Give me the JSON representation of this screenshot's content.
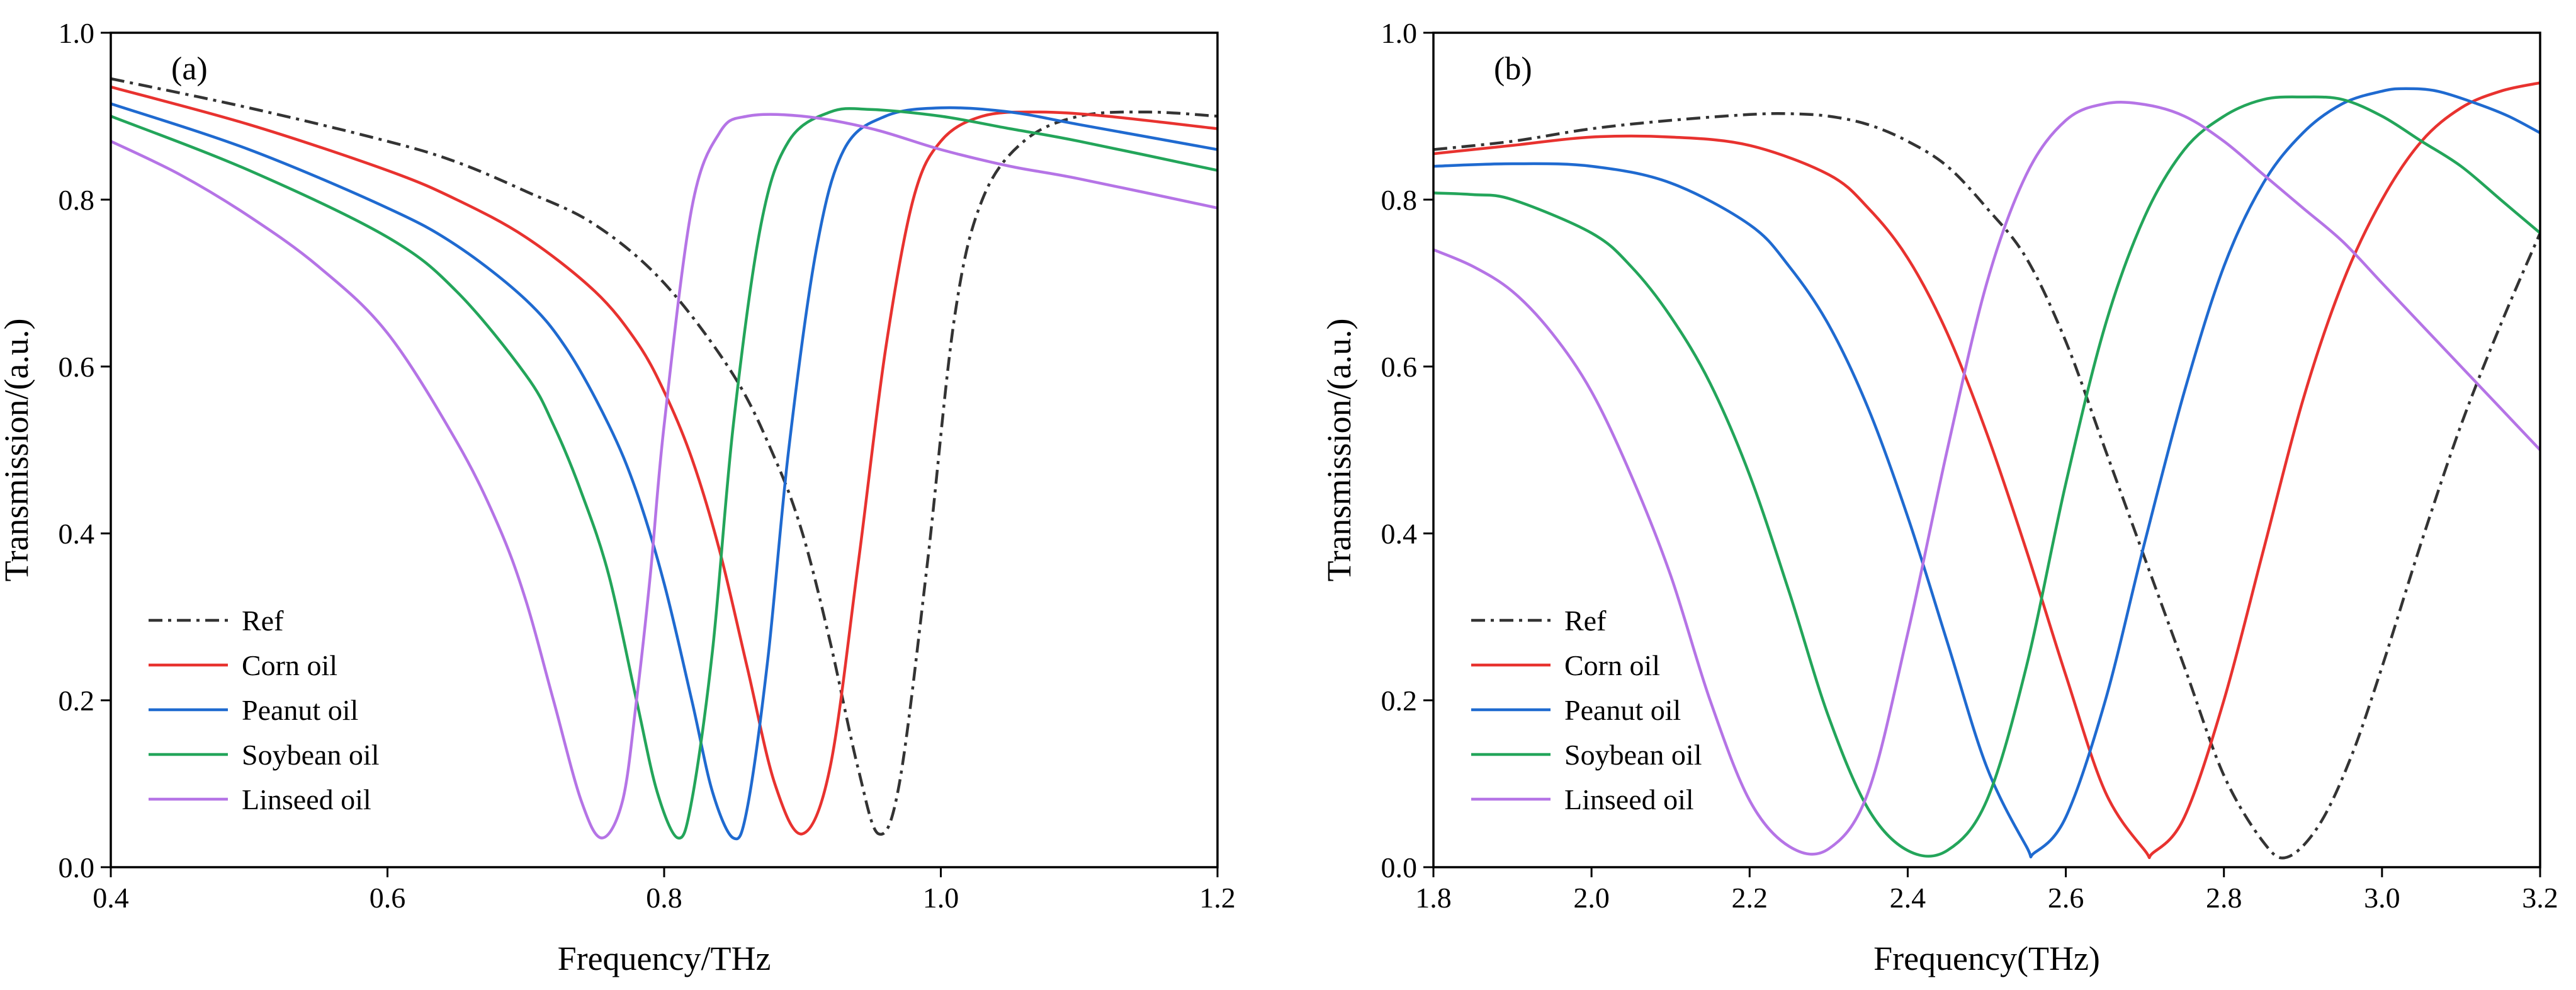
{
  "colors": {
    "Ref": "#333333",
    "Corn oil": "#e8322f",
    "Peanut oil": "#1f6ad0",
    "Soybean oil": "#23a55a",
    "Linseed oil": "#b574e6"
  },
  "chart_data": [
    {
      "type": "line",
      "panel_label": "(a)",
      "xlabel": "Frequency/THz",
      "ylabel": "Transmission/(a.u.)",
      "xlim": [
        0.4,
        1.2
      ],
      "ylim": [
        0.0,
        1.0
      ],
      "xticks": [
        "0.4",
        "0.6",
        "0.8",
        "1.0",
        "1.2"
      ],
      "yticks": [
        "0.0",
        "0.2",
        "0.4",
        "0.6",
        "0.8",
        "1.0"
      ],
      "legend_position": "bottom-left",
      "series": [
        {
          "name": "Ref",
          "style": "dashdot",
          "x": [
            0.4,
            0.5,
            0.6,
            0.65,
            0.7,
            0.75,
            0.8,
            0.85,
            0.88,
            0.9,
            0.92,
            0.94,
            0.955,
            0.97,
            0.99,
            1.01,
            1.03,
            1.06,
            1.1,
            1.15,
            1.2
          ],
          "y": [
            0.945,
            0.91,
            0.87,
            0.845,
            0.81,
            0.77,
            0.7,
            0.59,
            0.49,
            0.4,
            0.27,
            0.12,
            0.04,
            0.1,
            0.36,
            0.66,
            0.8,
            0.87,
            0.9,
            0.905,
            0.9
          ]
        },
        {
          "name": "Corn oil",
          "style": "solid",
          "x": [
            0.4,
            0.5,
            0.6,
            0.65,
            0.7,
            0.75,
            0.78,
            0.8,
            0.82,
            0.84,
            0.86,
            0.88,
            0.9,
            0.92,
            0.94,
            0.96,
            0.98,
            1.0,
            1.03,
            1.07,
            1.12,
            1.2
          ],
          "y": [
            0.935,
            0.89,
            0.835,
            0.8,
            0.755,
            0.69,
            0.63,
            0.57,
            0.49,
            0.38,
            0.24,
            0.1,
            0.04,
            0.12,
            0.36,
            0.62,
            0.8,
            0.87,
            0.9,
            0.905,
            0.9,
            0.885
          ]
        },
        {
          "name": "Peanut oil",
          "style": "solid",
          "x": [
            0.4,
            0.5,
            0.6,
            0.65,
            0.7,
            0.73,
            0.76,
            0.78,
            0.8,
            0.82,
            0.835,
            0.85,
            0.86,
            0.875,
            0.89,
            0.91,
            0.93,
            0.96,
            1.0,
            1.05,
            1.1,
            1.2
          ],
          "y": [
            0.915,
            0.86,
            0.79,
            0.745,
            0.68,
            0.62,
            0.53,
            0.45,
            0.34,
            0.2,
            0.09,
            0.035,
            0.07,
            0.25,
            0.5,
            0.74,
            0.86,
            0.9,
            0.91,
            0.905,
            0.89,
            0.86
          ]
        },
        {
          "name": "Soybean oil",
          "style": "solid",
          "x": [
            0.4,
            0.5,
            0.6,
            0.65,
            0.7,
            0.72,
            0.74,
            0.76,
            0.78,
            0.795,
            0.81,
            0.82,
            0.835,
            0.85,
            0.87,
            0.89,
            0.92,
            0.95,
            1.0,
            1.05,
            1.1,
            1.2
          ],
          "y": [
            0.9,
            0.835,
            0.755,
            0.69,
            0.59,
            0.53,
            0.45,
            0.35,
            0.2,
            0.09,
            0.035,
            0.08,
            0.26,
            0.53,
            0.77,
            0.87,
            0.905,
            0.908,
            0.9,
            0.885,
            0.87,
            0.835
          ]
        },
        {
          "name": "Linseed oil",
          "style": "solid",
          "x": [
            0.4,
            0.45,
            0.5,
            0.55,
            0.6,
            0.65,
            0.68,
            0.7,
            0.72,
            0.74,
            0.755,
            0.77,
            0.78,
            0.79,
            0.8,
            0.82,
            0.84,
            0.86,
            0.9,
            0.95,
            1.0,
            1.05,
            1.1,
            1.2
          ],
          "y": [
            0.87,
            0.83,
            0.78,
            0.72,
            0.64,
            0.51,
            0.41,
            0.32,
            0.2,
            0.08,
            0.035,
            0.08,
            0.2,
            0.35,
            0.53,
            0.79,
            0.88,
            0.9,
            0.9,
            0.885,
            0.86,
            0.84,
            0.825,
            0.79
          ]
        }
      ]
    },
    {
      "type": "line",
      "panel_label": "(b)",
      "xlabel": "Frequency(THz)",
      "ylabel": "Transmission/(a.u.)",
      "xlim": [
        1.8,
        3.2
      ],
      "ylim": [
        0.0,
        1.0
      ],
      "xticks": [
        "1.8",
        "2.0",
        "2.2",
        "2.4",
        "2.6",
        "2.8",
        "3.0",
        "3.2"
      ],
      "yticks": [
        "0.0",
        "0.2",
        "0.4",
        "0.6",
        "0.8",
        "1.0"
      ],
      "legend_position": "bottom-left",
      "series": [
        {
          "name": "Ref",
          "style": "dashdot",
          "x": [
            1.8,
            1.9,
            2.0,
            2.1,
            2.2,
            2.25,
            2.3,
            2.35,
            2.4,
            2.45,
            2.5,
            2.55,
            2.6,
            2.65,
            2.7,
            2.75,
            2.8,
            2.85,
            2.88,
            2.92,
            2.96,
            3.0,
            3.05,
            3.1,
            3.15,
            3.2
          ],
          "y": [
            0.86,
            0.87,
            0.885,
            0.895,
            0.902,
            0.903,
            0.9,
            0.89,
            0.87,
            0.84,
            0.79,
            0.73,
            0.63,
            0.5,
            0.37,
            0.24,
            0.11,
            0.03,
            0.012,
            0.05,
            0.13,
            0.24,
            0.39,
            0.53,
            0.65,
            0.76
          ]
        },
        {
          "name": "Corn oil",
          "style": "solid",
          "x": [
            1.8,
            1.9,
            2.0,
            2.1,
            2.2,
            2.3,
            2.35,
            2.4,
            2.45,
            2.5,
            2.55,
            2.6,
            2.65,
            2.7,
            2.71,
            2.75,
            2.8,
            2.85,
            2.9,
            2.95,
            3.0,
            3.05,
            3.1,
            3.15,
            3.2
          ],
          "y": [
            0.855,
            0.865,
            0.875,
            0.875,
            0.865,
            0.83,
            0.79,
            0.73,
            0.64,
            0.52,
            0.38,
            0.23,
            0.09,
            0.02,
            0.017,
            0.06,
            0.2,
            0.38,
            0.56,
            0.7,
            0.8,
            0.87,
            0.91,
            0.93,
            0.94
          ]
        },
        {
          "name": "Peanut oil",
          "style": "solid",
          "x": [
            1.8,
            1.9,
            2.0,
            2.1,
            2.2,
            2.25,
            2.3,
            2.35,
            2.4,
            2.45,
            2.5,
            2.55,
            2.56,
            2.6,
            2.65,
            2.7,
            2.75,
            2.8,
            2.85,
            2.9,
            2.95,
            3.0,
            3.03,
            3.07,
            3.12,
            3.16,
            3.2
          ],
          "y": [
            0.84,
            0.843,
            0.84,
            0.82,
            0.77,
            0.72,
            0.65,
            0.55,
            0.42,
            0.27,
            0.12,
            0.025,
            0.017,
            0.06,
            0.2,
            0.39,
            0.57,
            0.72,
            0.82,
            0.88,
            0.915,
            0.93,
            0.933,
            0.93,
            0.915,
            0.9,
            0.88
          ]
        },
        {
          "name": "Soybean oil",
          "style": "solid",
          "x": [
            1.8,
            1.85,
            1.9,
            2.0,
            2.05,
            2.1,
            2.15,
            2.2,
            2.25,
            2.3,
            2.35,
            2.4,
            2.45,
            2.5,
            2.55,
            2.6,
            2.65,
            2.7,
            2.75,
            2.8,
            2.85,
            2.9,
            2.95,
            3.0,
            3.05,
            3.1,
            3.15,
            3.2
          ],
          "y": [
            0.808,
            0.806,
            0.8,
            0.76,
            0.72,
            0.66,
            0.58,
            0.47,
            0.33,
            0.18,
            0.07,
            0.02,
            0.02,
            0.08,
            0.24,
            0.46,
            0.65,
            0.78,
            0.86,
            0.9,
            0.92,
            0.923,
            0.92,
            0.9,
            0.87,
            0.84,
            0.8,
            0.76
          ]
        },
        {
          "name": "Linseed oil",
          "style": "solid",
          "x": [
            1.8,
            1.85,
            1.9,
            1.95,
            2.0,
            2.05,
            2.1,
            2.15,
            2.2,
            2.25,
            2.3,
            2.35,
            2.4,
            2.45,
            2.5,
            2.55,
            2.6,
            2.65,
            2.7,
            2.75,
            2.8,
            2.85,
            2.9,
            2.95,
            3.0,
            3.05,
            3.1,
            3.15,
            3.2
          ],
          "y": [
            0.74,
            0.72,
            0.69,
            0.64,
            0.57,
            0.47,
            0.35,
            0.2,
            0.08,
            0.025,
            0.022,
            0.09,
            0.28,
            0.5,
            0.7,
            0.83,
            0.895,
            0.915,
            0.914,
            0.9,
            0.87,
            0.83,
            0.79,
            0.75,
            0.7,
            0.65,
            0.6,
            0.55,
            0.5
          ]
        }
      ]
    }
  ]
}
